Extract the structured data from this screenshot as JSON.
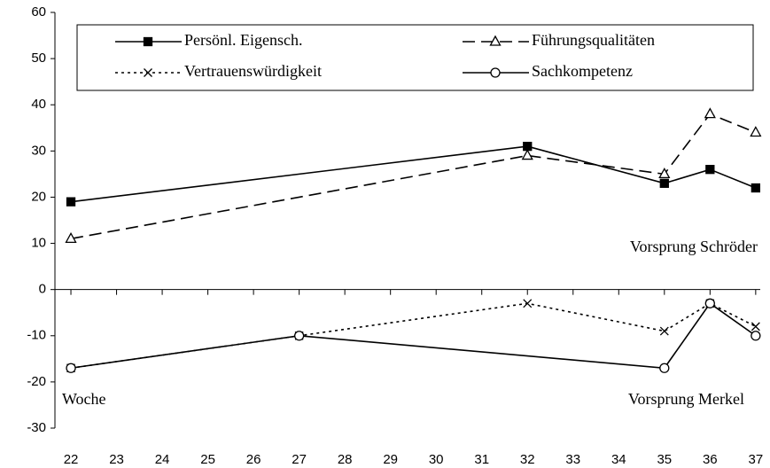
{
  "chart_data": {
    "type": "line",
    "xlabel": "Woche",
    "annotations": [
      "Vorsprung Schröder",
      "Vorsprung Merkel"
    ],
    "xlim": [
      21.65,
      37.1
    ],
    "xticks": [
      22,
      23,
      24,
      25,
      26,
      27,
      28,
      29,
      30,
      31,
      32,
      33,
      34,
      35,
      36,
      37
    ],
    "ylim": [
      -30,
      60
    ],
    "yticks": [
      -30,
      -20,
      -10,
      0,
      10,
      20,
      30,
      40,
      50,
      60
    ],
    "series": [
      {
        "name": "Persönl. Eigensch.",
        "color": "#000000",
        "line_style": "solid",
        "marker": "square",
        "x": [
          22,
          32,
          35,
          36,
          37
        ],
        "values": [
          19,
          31,
          23,
          26,
          22
        ]
      },
      {
        "name": "Führungsqualitäten",
        "color": "#000000",
        "line_style": "dashed",
        "marker": "triangle",
        "x": [
          22,
          32,
          35,
          36,
          37
        ],
        "values": [
          11,
          29,
          25,
          38,
          34
        ]
      },
      {
        "name": "Vertrauenswürdigkeit",
        "color": "#000000",
        "line_style": "dotted",
        "marker": "x",
        "x": [
          22,
          27,
          32,
          35,
          36,
          37
        ],
        "values": [
          -17,
          -10,
          -3,
          -9,
          -3,
          -8
        ]
      },
      {
        "name": "Sachkompetenz",
        "color": "#000000",
        "line_style": "solid",
        "marker": "circle",
        "x": [
          22,
          27,
          35,
          36,
          37
        ],
        "values": [
          -17,
          -10,
          -17,
          -3,
          -10
        ]
      }
    ]
  }
}
